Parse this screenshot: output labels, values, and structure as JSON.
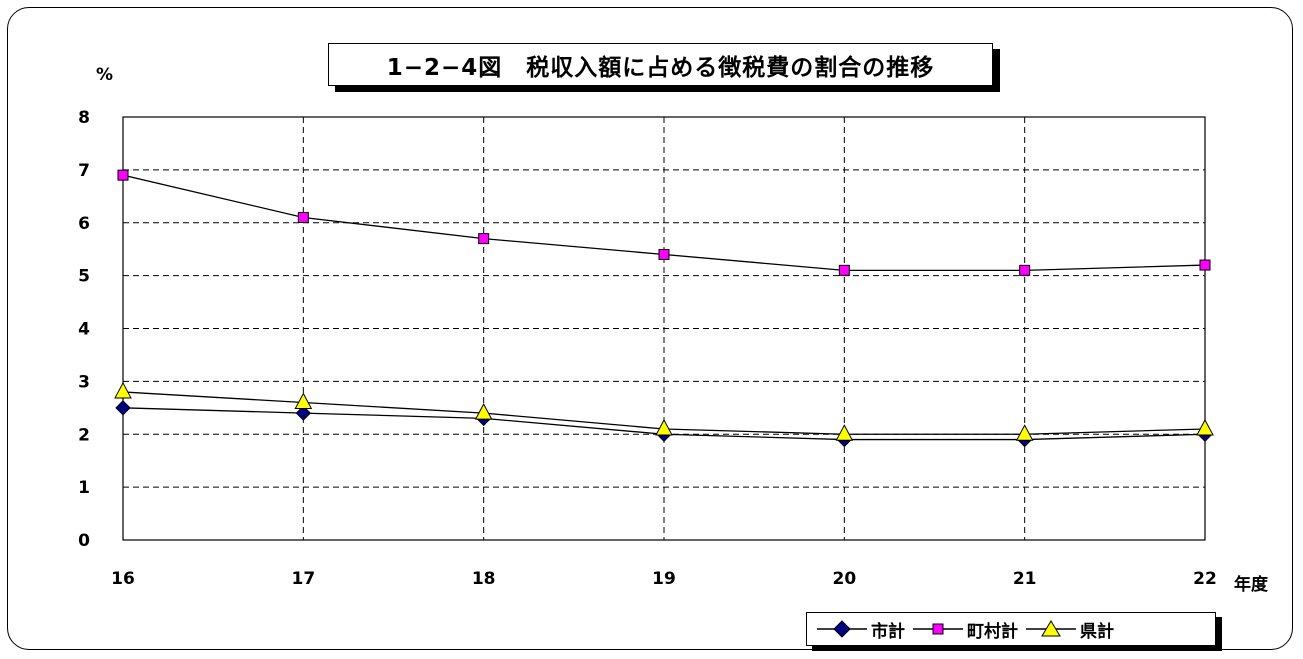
{
  "chart_data": {
    "type": "line",
    "title": "1−2−4図　税収入額に占める徴税費の割合の推移",
    "ylabel": "%",
    "xlabel": "年度",
    "categories": [
      "16",
      "17",
      "18",
      "19",
      "20",
      "21",
      "22"
    ],
    "y_ticks": [
      "0",
      "1",
      "2",
      "3",
      "4",
      "5",
      "6",
      "7",
      "8"
    ],
    "ylim": [
      0,
      8
    ],
    "grid": true,
    "legend_position": "bottom-right",
    "series": [
      {
        "name": "市計",
        "marker": "diamond",
        "color": "#000080",
        "values": [
          2.5,
          2.4,
          2.3,
          2.0,
          1.9,
          1.9,
          2.0
        ]
      },
      {
        "name": "町村計",
        "marker": "square",
        "color": "#ff00ff",
        "values": [
          6.9,
          6.1,
          5.7,
          5.4,
          5.1,
          5.1,
          5.2
        ]
      },
      {
        "name": "県計",
        "marker": "triangle",
        "color": "#ffff00",
        "values": [
          2.8,
          2.6,
          2.4,
          2.1,
          2.0,
          2.0,
          2.1
        ]
      }
    ]
  }
}
